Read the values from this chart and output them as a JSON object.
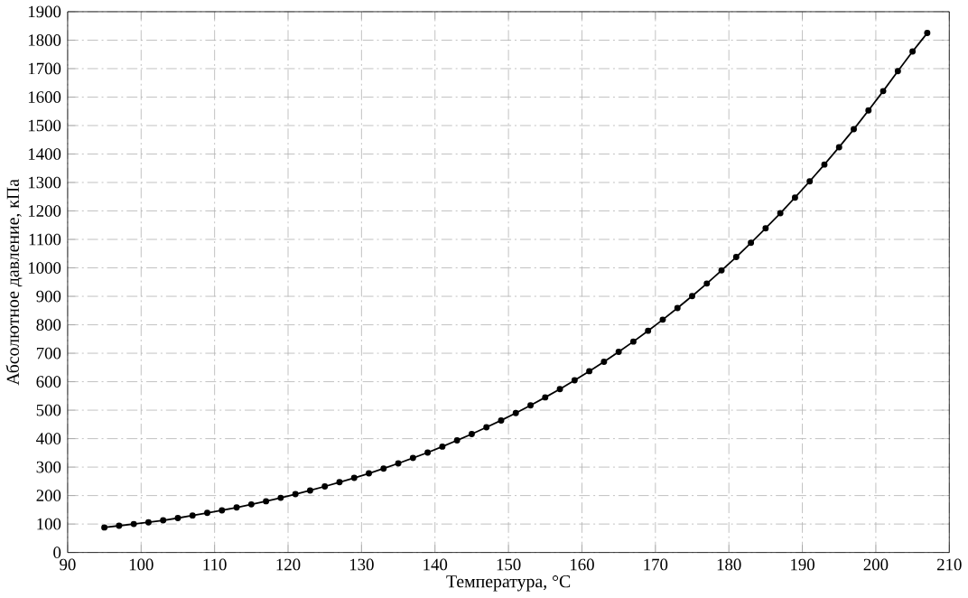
{
  "chart_data": {
    "type": "line",
    "xlabel": "Температура, °C",
    "ylabel": "Абсолютное давление, кПа",
    "x": [
      95,
      97,
      99,
      101,
      103,
      105,
      107,
      109,
      111,
      113,
      115,
      117,
      119,
      121,
      123,
      125,
      127,
      129,
      131,
      133,
      135,
      137,
      139,
      141,
      143,
      145,
      147,
      149,
      151,
      153,
      155,
      157,
      159,
      161,
      163,
      165,
      167,
      169,
      171,
      173,
      175,
      177,
      179,
      181,
      183,
      185,
      187,
      189,
      191,
      193,
      195,
      197,
      199,
      201,
      203,
      205,
      207
    ],
    "series": [
      {
        "color": "#000000",
        "values": [
          88,
          94,
          100,
          106,
          113,
          121,
          130,
          139,
          148,
          158,
          169,
          180,
          192,
          205,
          218,
          232,
          247,
          262,
          278,
          295,
          313,
          332,
          351,
          372,
          394,
          416,
          440,
          464,
          490,
          517,
          545,
          574,
          605,
          637,
          670,
          705,
          741,
          779,
          818,
          859,
          901,
          945,
          991,
          1038,
          1088,
          1139,
          1192,
          1247,
          1304,
          1363,
          1424,
          1487,
          1553,
          1621,
          1691,
          1760,
          1825
        ]
      }
    ],
    "xlim": [
      90,
      210
    ],
    "ylim": [
      0,
      1900
    ],
    "xticks": [
      90,
      100,
      110,
      120,
      130,
      140,
      150,
      160,
      170,
      180,
      190,
      200,
      210
    ],
    "yticks": [
      0,
      100,
      200,
      300,
      400,
      500,
      600,
      700,
      800,
      900,
      1000,
      1100,
      1200,
      1300,
      1400,
      1500,
      1600,
      1700,
      1800,
      1900
    ],
    "grid": true,
    "marker": "circle",
    "line_style": "solid"
  }
}
